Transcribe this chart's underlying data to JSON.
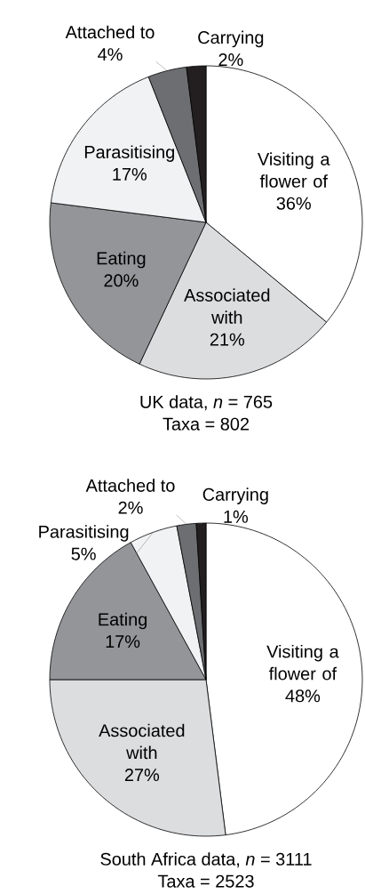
{
  "chart_data": [
    {
      "type": "pie",
      "title": "UK data, *n* = 765",
      "subtitle": "Taxa = 802",
      "categories": [
        "Visiting a flower of",
        "Associated with",
        "Eating",
        "Parasitising",
        "Attached to",
        "Carrying"
      ],
      "values": [
        36,
        21,
        20,
        17,
        4,
        2
      ],
      "value_labels": [
        "36%",
        "21%",
        "20%",
        "17%",
        "4%",
        "2%"
      ],
      "colors": [
        "#ffffff",
        "#dcdddf",
        "#939598",
        "#f1f2f4",
        "#6d6e71",
        "#231f20"
      ]
    },
    {
      "type": "pie",
      "title": "South Africa data, *n* = 3111",
      "subtitle": "Taxa = 2523",
      "categories": [
        "Visiting a flower of",
        "Associated with",
        "Eating",
        "Parasitising",
        "Attached to",
        "Carrying"
      ],
      "values": [
        48,
        27,
        17,
        5,
        2,
        1
      ],
      "value_labels": [
        "48%",
        "27%",
        "17%",
        "5%",
        "2%",
        "1%"
      ],
      "colors": [
        "#ffffff",
        "#dcdddf",
        "#939598",
        "#f1f2f4",
        "#6d6e71",
        "#231f20"
      ]
    }
  ]
}
